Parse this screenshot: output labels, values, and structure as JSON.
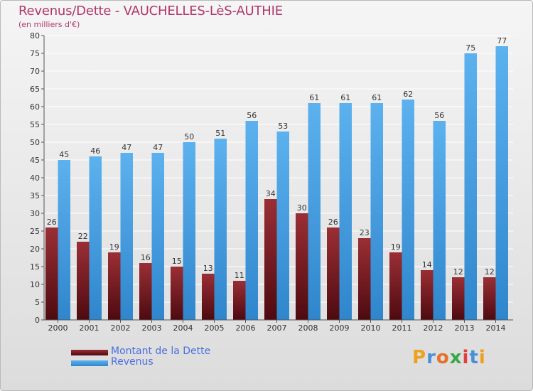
{
  "title": "Revenus/Dette - VAUCHELLES-LèS-AUTHIE",
  "subtitle": "(en milliers d'€)",
  "logo": "Proxiti",
  "colors": {
    "dette": "#7a1f24",
    "revenus": "#4aa3e4",
    "title": "#b0386b",
    "legend_text": "#4a6fe0"
  },
  "chart_data": {
    "type": "bar",
    "categories": [
      "2000",
      "2001",
      "2002",
      "2003",
      "2004",
      "2005",
      "2006",
      "2007",
      "2008",
      "2009",
      "2010",
      "2011",
      "2012",
      "2013",
      "2014"
    ],
    "series": [
      {
        "name": "Montant de la Dette",
        "values": [
          26,
          22,
          19,
          16,
          15,
          13,
          11,
          34,
          30,
          26,
          23,
          19,
          14,
          12,
          12
        ]
      },
      {
        "name": "Revenus",
        "values": [
          45,
          46,
          47,
          47,
          50,
          51,
          56,
          53,
          61,
          61,
          61,
          62,
          56,
          75,
          77
        ]
      }
    ],
    "ylim": [
      0,
      80
    ],
    "yticks": [
      0,
      5,
      10,
      15,
      20,
      25,
      30,
      35,
      40,
      45,
      50,
      55,
      60,
      65,
      70,
      75,
      80
    ],
    "grid": true,
    "legend_position": "bottom-left"
  }
}
